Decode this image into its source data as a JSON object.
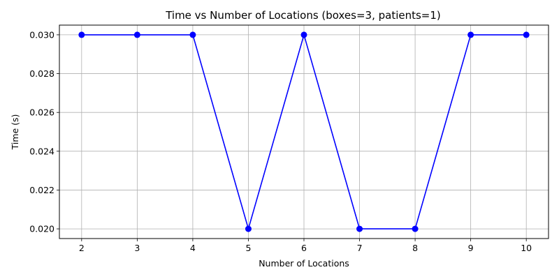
{
  "chart_data": {
    "type": "line",
    "title": "Time vs Number of Locations (boxes=3, patients=1)",
    "xlabel": "Number of Locations",
    "ylabel": "Time (s)",
    "x": [
      2,
      3,
      4,
      5,
      6,
      7,
      8,
      9,
      10
    ],
    "xticks": [
      "2",
      "3",
      "4",
      "5",
      "6",
      "7",
      "8",
      "9",
      "10"
    ],
    "yticks": [
      "0.020",
      "0.022",
      "0.024",
      "0.026",
      "0.028",
      "0.030"
    ],
    "ytick_values": [
      0.02,
      0.022,
      0.024,
      0.026,
      0.028,
      0.03
    ],
    "xlim": [
      1.6,
      10.4
    ],
    "ylim": [
      0.0195,
      0.0305
    ],
    "grid": true,
    "series": [
      {
        "values": [
          0.03,
          0.03,
          0.03,
          0.02,
          0.03,
          0.02,
          0.02,
          0.03,
          0.03
        ],
        "color": "#0000ff",
        "marker": "circle"
      }
    ]
  }
}
